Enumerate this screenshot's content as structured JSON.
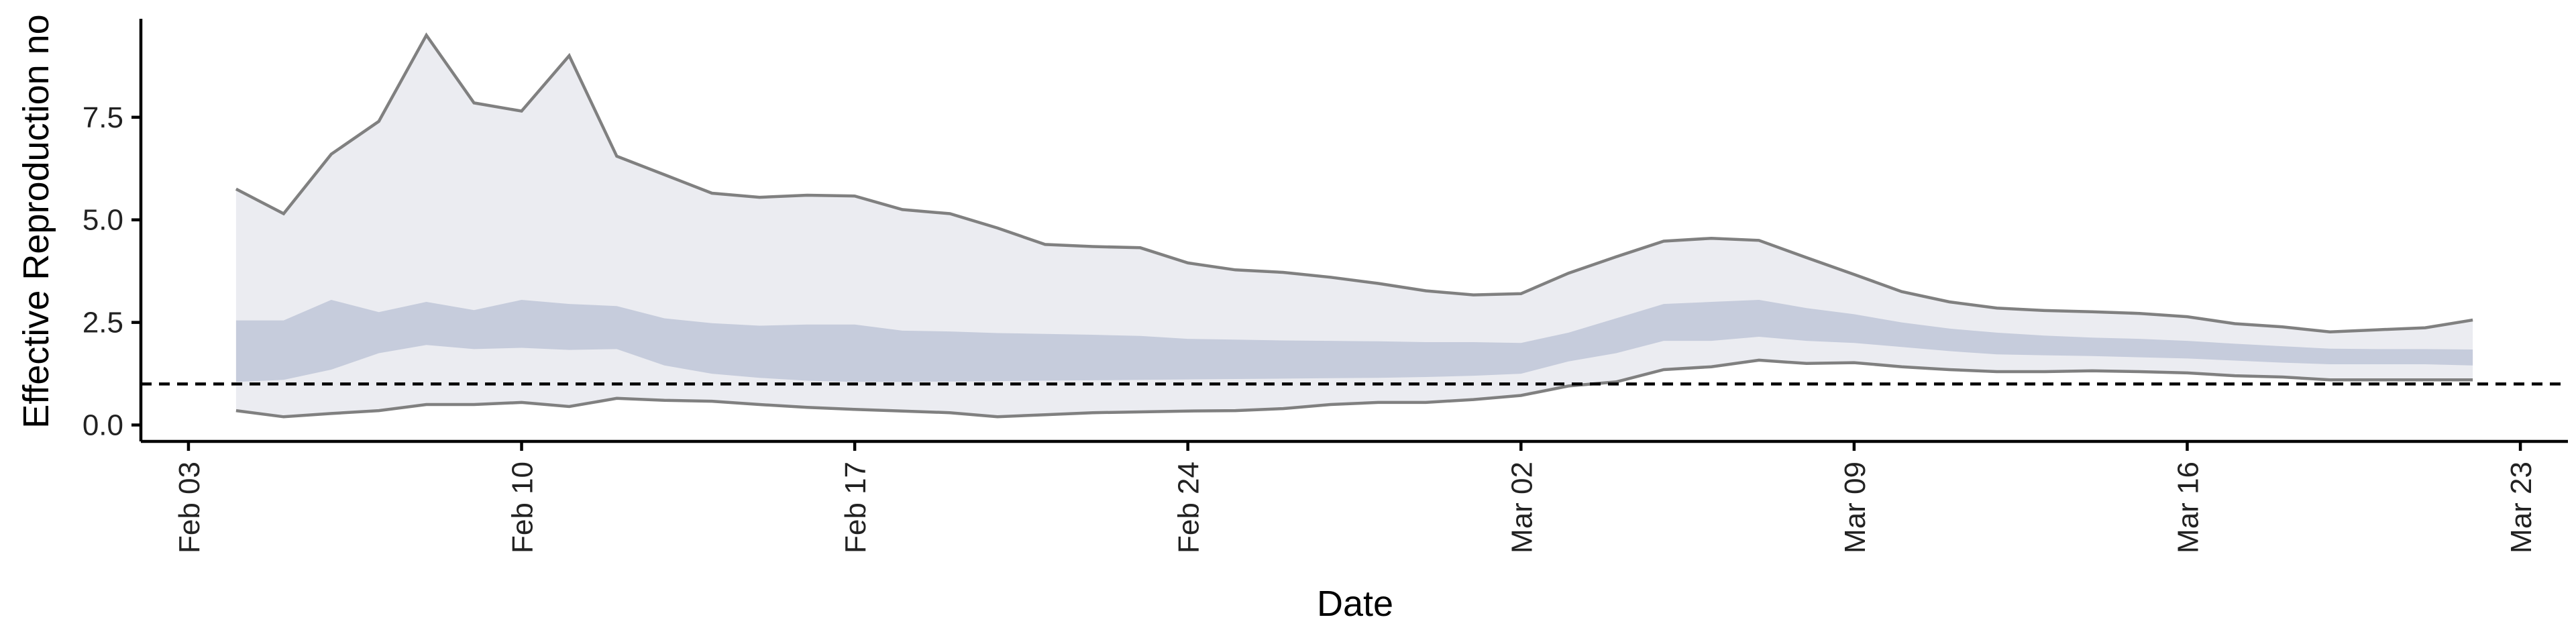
{
  "chart_data": {
    "type": "area",
    "xlabel": "Date",
    "ylabel": "Effective Reproduction no",
    "x_ticks": [
      "Feb 03",
      "Feb 10",
      "Feb 17",
      "Feb 24",
      "Mar 02",
      "Mar 09",
      "Mar 16",
      "Mar 23"
    ],
    "x_tick_dates": [
      "2020-02-03",
      "2020-02-10",
      "2020-02-17",
      "2020-02-24",
      "2020-03-02",
      "2020-03-09",
      "2020-03-16",
      "2020-03-23"
    ],
    "y_ticks": [
      "0.0",
      "2.5",
      "5.0",
      "7.5"
    ],
    "y_tick_values": [
      0,
      2.5,
      5,
      7.5
    ],
    "ylim": [
      -0.4,
      9.9
    ],
    "xlim": [
      "2020-02-02",
      "2020-03-24"
    ],
    "reference_line": {
      "y": 1,
      "style": "dashed"
    },
    "grid": false,
    "colors": {
      "outer_band": "#ebecf1",
      "inner_band": "#c6ccdc",
      "bound_line": "#808080",
      "reference_line": "#000000"
    },
    "x": [
      "2020-02-04",
      "2020-02-05",
      "2020-02-06",
      "2020-02-07",
      "2020-02-08",
      "2020-02-09",
      "2020-02-10",
      "2020-02-11",
      "2020-02-12",
      "2020-02-13",
      "2020-02-14",
      "2020-02-15",
      "2020-02-16",
      "2020-02-17",
      "2020-02-18",
      "2020-02-19",
      "2020-02-20",
      "2020-02-21",
      "2020-02-22",
      "2020-02-23",
      "2020-02-24",
      "2020-02-25",
      "2020-02-26",
      "2020-02-27",
      "2020-02-28",
      "2020-02-29",
      "2020-03-01",
      "2020-03-02",
      "2020-03-03",
      "2020-03-04",
      "2020-03-05",
      "2020-03-06",
      "2020-03-07",
      "2020-03-08",
      "2020-03-09",
      "2020-03-10",
      "2020-03-11",
      "2020-03-12",
      "2020-03-13",
      "2020-03-14",
      "2020-03-15",
      "2020-03-16",
      "2020-03-17",
      "2020-03-18",
      "2020-03-19",
      "2020-03-20",
      "2020-03-21",
      "2020-03-22"
    ],
    "series": [
      {
        "upper_90": [
          5.75,
          5.15,
          6.6,
          7.4,
          9.5,
          7.85,
          7.65,
          9.0,
          6.55,
          6.1,
          5.65,
          5.55,
          5.6,
          5.58,
          5.25,
          5.15,
          4.8,
          4.4,
          4.35,
          4.32,
          3.95,
          3.78,
          3.72,
          3.6,
          3.45,
          3.27,
          3.17,
          3.2,
          3.7,
          4.1,
          4.48,
          4.55,
          4.5,
          4.08,
          3.67,
          3.25,
          3.0,
          2.85,
          2.79,
          2.76,
          2.72,
          2.64,
          2.47,
          2.39,
          2.27,
          2.32,
          2.37,
          2.56
        ],
        "upper_50": [
          2.55,
          2.55,
          3.05,
          2.75,
          3.0,
          2.8,
          3.05,
          2.95,
          2.9,
          2.6,
          2.48,
          2.42,
          2.45,
          2.45,
          2.3,
          2.28,
          2.24,
          2.22,
          2.2,
          2.17,
          2.1,
          2.08,
          2.06,
          2.05,
          2.04,
          2.02,
          2.02,
          2.0,
          2.25,
          2.6,
          2.95,
          3.0,
          3.05,
          2.85,
          2.7,
          2.5,
          2.35,
          2.25,
          2.18,
          2.13,
          2.1,
          2.05,
          1.98,
          1.92,
          1.86,
          1.85,
          1.85,
          1.84
        ],
        "lower_50": [
          1.05,
          1.1,
          1.35,
          1.75,
          1.95,
          1.85,
          1.88,
          1.83,
          1.85,
          1.45,
          1.25,
          1.15,
          1.08,
          1.05,
          1.05,
          1.06,
          1.07,
          1.08,
          1.09,
          1.1,
          1.11,
          1.12,
          1.13,
          1.14,
          1.15,
          1.17,
          1.2,
          1.25,
          1.55,
          1.75,
          2.05,
          2.05,
          2.15,
          2.05,
          2.0,
          1.9,
          1.8,
          1.72,
          1.7,
          1.68,
          1.65,
          1.62,
          1.57,
          1.52,
          1.48,
          1.48,
          1.48,
          1.45
        ],
        "lower_90": [
          0.35,
          0.2,
          0.28,
          0.35,
          0.5,
          0.5,
          0.55,
          0.45,
          0.65,
          0.6,
          0.58,
          0.5,
          0.43,
          0.38,
          0.34,
          0.3,
          0.2,
          0.25,
          0.3,
          0.32,
          0.34,
          0.35,
          0.4,
          0.5,
          0.55,
          0.55,
          0.62,
          0.72,
          0.95,
          1.05,
          1.35,
          1.42,
          1.58,
          1.5,
          1.52,
          1.42,
          1.35,
          1.3,
          1.3,
          1.32,
          1.3,
          1.27,
          1.2,
          1.17,
          1.1,
          1.1,
          1.1,
          1.1
        ]
      }
    ]
  }
}
